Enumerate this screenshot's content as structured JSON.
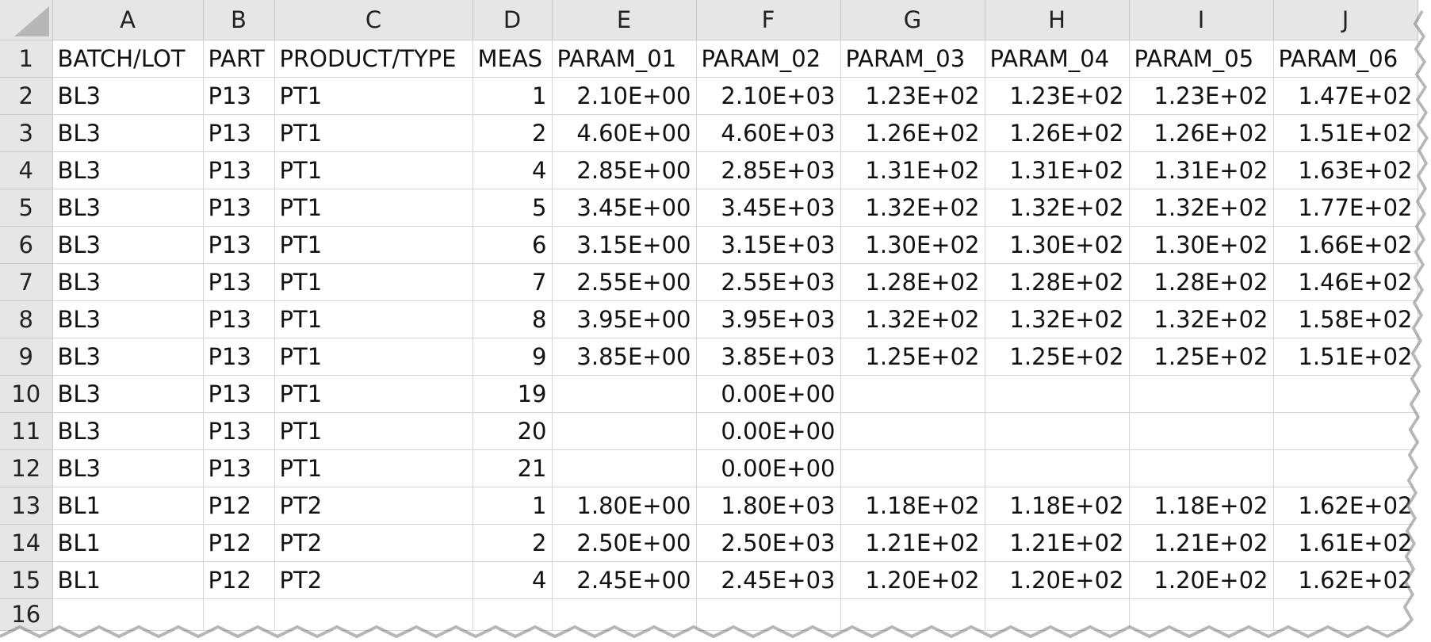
{
  "columns": [
    "A",
    "B",
    "C",
    "D",
    "E",
    "F",
    "G",
    "H",
    "I",
    "J"
  ],
  "rows": [
    {
      "num": "1",
      "cells": [
        "BATCH/LOT",
        "PART",
        "PRODUCT/TYPE",
        "MEAS",
        "PARAM_01",
        "PARAM_02",
        "PARAM_03",
        "PARAM_04",
        "PARAM_05",
        "PARAM_06"
      ]
    },
    {
      "num": "2",
      "cells": [
        "BL3",
        "P13",
        "PT1",
        "1",
        "2.10E+00",
        "2.10E+03",
        "1.23E+02",
        "1.23E+02",
        "1.23E+02",
        "1.47E+02"
      ]
    },
    {
      "num": "3",
      "cells": [
        "BL3",
        "P13",
        "PT1",
        "2",
        "4.60E+00",
        "4.60E+03",
        "1.26E+02",
        "1.26E+02",
        "1.26E+02",
        "1.51E+02"
      ]
    },
    {
      "num": "4",
      "cells": [
        "BL3",
        "P13",
        "PT1",
        "4",
        "2.85E+00",
        "2.85E+03",
        "1.31E+02",
        "1.31E+02",
        "1.31E+02",
        "1.63E+02"
      ]
    },
    {
      "num": "5",
      "cells": [
        "BL3",
        "P13",
        "PT1",
        "5",
        "3.45E+00",
        "3.45E+03",
        "1.32E+02",
        "1.32E+02",
        "1.32E+02",
        "1.77E+02"
      ]
    },
    {
      "num": "6",
      "cells": [
        "BL3",
        "P13",
        "PT1",
        "6",
        "3.15E+00",
        "3.15E+03",
        "1.30E+02",
        "1.30E+02",
        "1.30E+02",
        "1.66E+02"
      ]
    },
    {
      "num": "7",
      "cells": [
        "BL3",
        "P13",
        "PT1",
        "7",
        "2.55E+00",
        "2.55E+03",
        "1.28E+02",
        "1.28E+02",
        "1.28E+02",
        "1.46E+02"
      ]
    },
    {
      "num": "8",
      "cells": [
        "BL3",
        "P13",
        "PT1",
        "8",
        "3.95E+00",
        "3.95E+03",
        "1.32E+02",
        "1.32E+02",
        "1.32E+02",
        "1.58E+02"
      ]
    },
    {
      "num": "9",
      "cells": [
        "BL3",
        "P13",
        "PT1",
        "9",
        "3.85E+00",
        "3.85E+03",
        "1.25E+02",
        "1.25E+02",
        "1.25E+02",
        "1.51E+02"
      ]
    },
    {
      "num": "10",
      "cells": [
        "BL3",
        "P13",
        "PT1",
        "19",
        "",
        "0.00E+00",
        "",
        "",
        "",
        ""
      ]
    },
    {
      "num": "11",
      "cells": [
        "BL3",
        "P13",
        "PT1",
        "20",
        "",
        "0.00E+00",
        "",
        "",
        "",
        ""
      ]
    },
    {
      "num": "12",
      "cells": [
        "BL3",
        "P13",
        "PT1",
        "21",
        "",
        "0.00E+00",
        "",
        "",
        "",
        ""
      ]
    },
    {
      "num": "13",
      "cells": [
        "BL1",
        "P12",
        "PT2",
        "1",
        "1.80E+00",
        "1.80E+03",
        "1.18E+02",
        "1.18E+02",
        "1.18E+02",
        "1.62E+02"
      ]
    },
    {
      "num": "14",
      "cells": [
        "BL1",
        "P12",
        "PT2",
        "2",
        "2.50E+00",
        "2.50E+03",
        "1.21E+02",
        "1.21E+02",
        "1.21E+02",
        "1.61E+02"
      ]
    },
    {
      "num": "15",
      "cells": [
        "BL1",
        "P12",
        "PT2",
        "4",
        "2.45E+00",
        "2.45E+03",
        "1.20E+02",
        "1.20E+02",
        "1.20E+02",
        "1.62E+02"
      ]
    },
    {
      "num": "16",
      "cells": [
        "",
        "",
        "",
        "",
        "",
        "",
        "",
        "",
        "",
        ""
      ]
    }
  ],
  "colors": {
    "header_bg": "#e6e6e6",
    "gridline": "#d6d6d6",
    "text": "#111111"
  }
}
